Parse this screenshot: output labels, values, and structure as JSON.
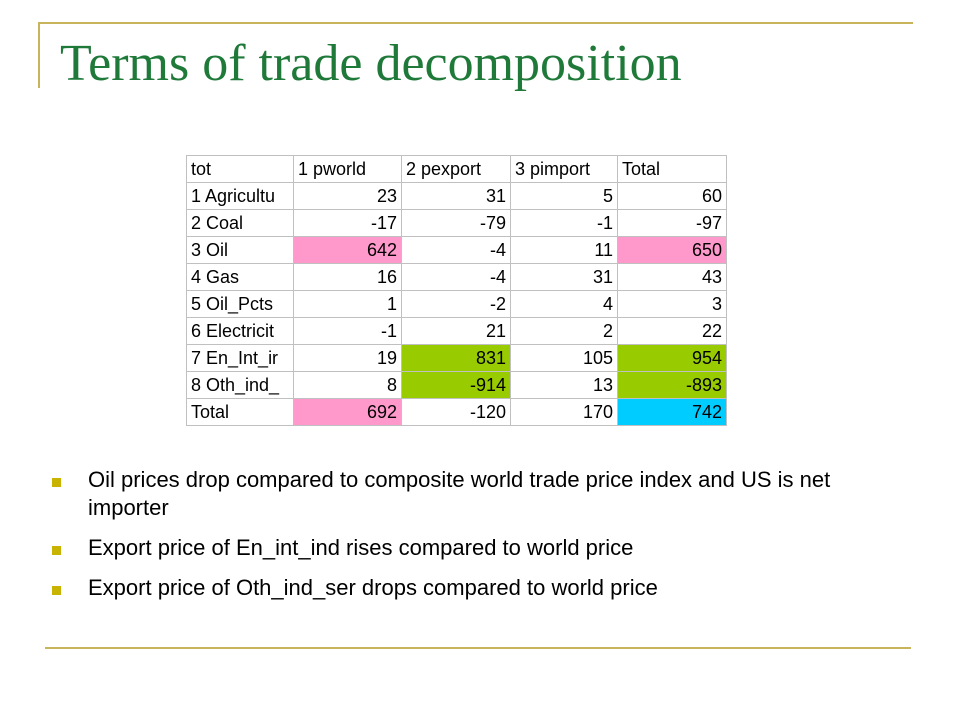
{
  "title": "Terms of trade decomposition",
  "table": {
    "headers": [
      "tot",
      "1 pworld",
      "2 pexport",
      "3 pimport",
      "Total"
    ],
    "rows": [
      {
        "label": "1 Agricultu",
        "values": [
          "23",
          "31",
          "5",
          "60"
        ]
      },
      {
        "label": "2 Coal",
        "values": [
          "-17",
          "-79",
          "-1",
          "-97"
        ]
      },
      {
        "label": "3 Oil",
        "values": [
          "642",
          "-4",
          "11",
          "650"
        ]
      },
      {
        "label": "4 Gas",
        "values": [
          "16",
          "-4",
          "31",
          "43"
        ]
      },
      {
        "label": "5 Oil_Pcts",
        "values": [
          "1",
          "-2",
          "4",
          "3"
        ]
      },
      {
        "label": "6 Electricit",
        "values": [
          "-1",
          "21",
          "2",
          "22"
        ]
      },
      {
        "label": "7 En_Int_ir",
        "values": [
          "19",
          "831",
          "105",
          "954"
        ]
      },
      {
        "label": "8 Oth_ind_",
        "values": [
          "8",
          "-914",
          "13",
          "-893"
        ]
      },
      {
        "label": "Total",
        "values": [
          "692",
          "-120",
          "170",
          "742"
        ]
      }
    ],
    "highlight_colors": {
      "pink": "#ff99cc",
      "green": "#99cc00",
      "cyan": "#00ccff"
    }
  },
  "bullets": [
    "Oil prices drop compared to composite world trade price index and US is net importer",
    "Export price of En_int_ind rises compared to world price",
    "Export price of Oth_ind_ser drops compared to world price"
  ],
  "colors": {
    "title": "#1f7a3a",
    "accent": "#c8b45a",
    "bullet": "#c8b400"
  }
}
